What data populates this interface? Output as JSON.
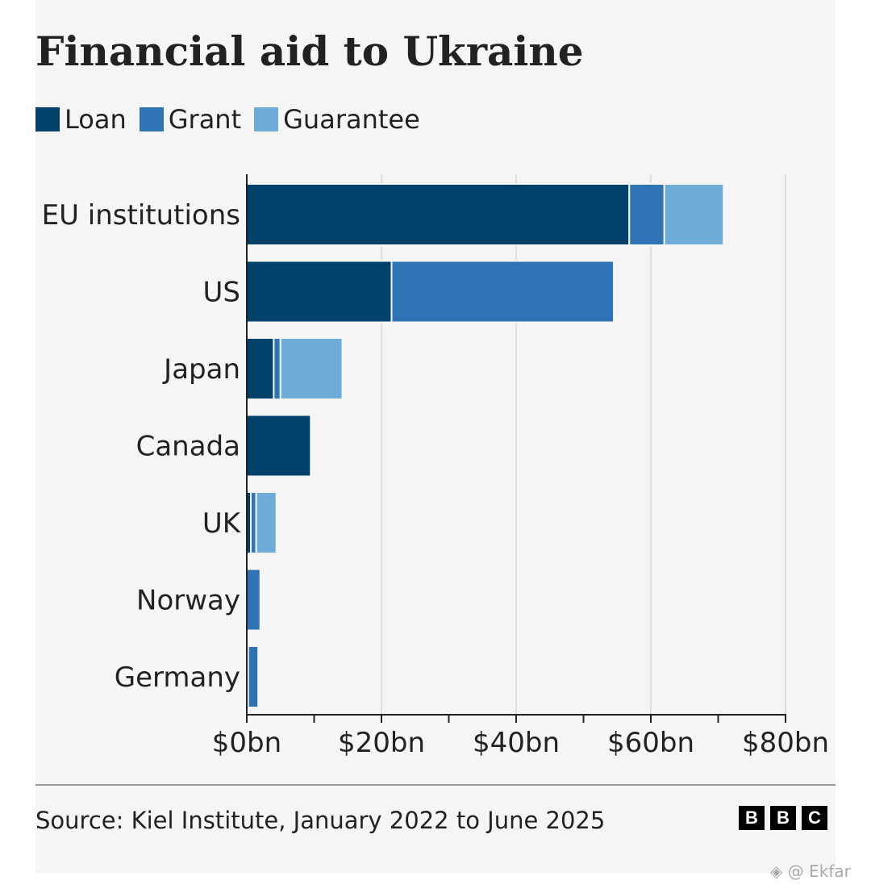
{
  "colors": {
    "loan": "#00416a",
    "grant": "#2e74b5",
    "guarantee": "#6fadd9",
    "background": "#f5f5f5",
    "gridline": "#dddddd",
    "axis": "#222222"
  },
  "chart_data": {
    "type": "bar",
    "orientation": "horizontal",
    "stacked": true,
    "title": "Financial aid to Ukraine",
    "categories": [
      "EU institutions",
      "US",
      "Japan",
      "Canada",
      "UK",
      "Norway",
      "Germany"
    ],
    "series": [
      {
        "name": "Loan",
        "color_key": "loan",
        "values": [
          56.8,
          21.5,
          4.0,
          9.5,
          0.6,
          0.0,
          0.2
        ]
      },
      {
        "name": "Grant",
        "color_key": "grant",
        "values": [
          5.2,
          33.0,
          1.0,
          0.0,
          0.8,
          2.0,
          1.5
        ]
      },
      {
        "name": "Guarantee",
        "color_key": "guarantee",
        "values": [
          8.8,
          0.0,
          9.2,
          0.0,
          3.0,
          0.0,
          0.0
        ]
      }
    ],
    "xlim": [
      0,
      80
    ],
    "x_ticks": [
      0,
      20,
      40,
      60,
      80
    ],
    "x_tick_labels": [
      "$0bn",
      "$20bn",
      "$40bn",
      "$60bn",
      "$80bn"
    ],
    "minor_ticks": [
      10,
      30,
      50,
      70
    ],
    "grid": true,
    "legend_placement": "top-left",
    "xlabel": "",
    "ylabel": ""
  },
  "footer": {
    "source": "Source: Kiel Institute, January 2022 to June 2025",
    "logo_letters": [
      "B",
      "B",
      "C"
    ]
  },
  "watermark": "◈ @ Ekfar"
}
